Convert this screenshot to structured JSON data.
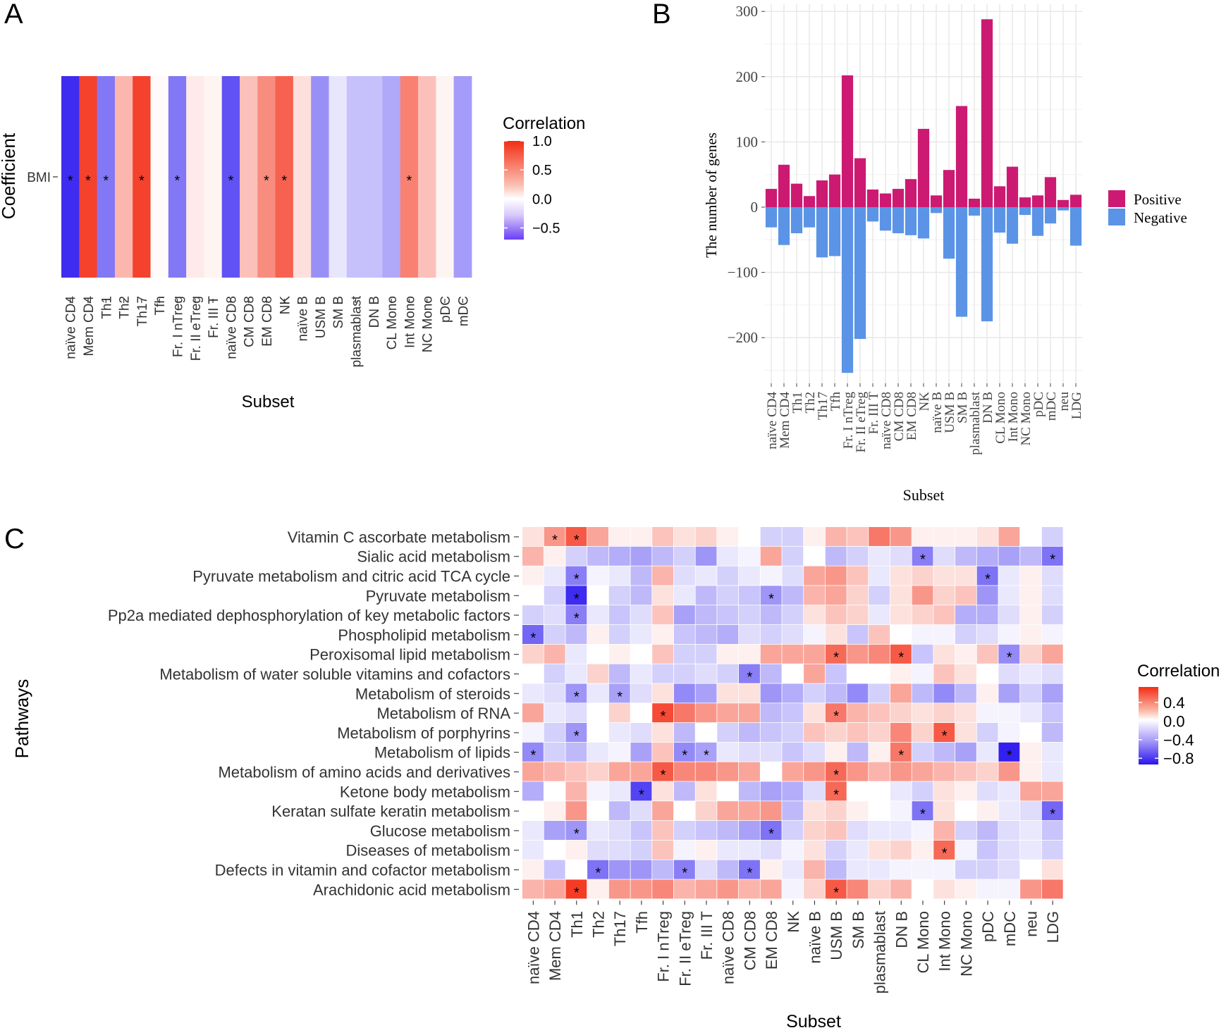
{
  "colors": {
    "positive": "#cc1a73",
    "negative": "#5b94e6",
    "high": "#f32d14",
    "mid": "#ffffff",
    "low": "#3320ef",
    "grid": "#e9e9e9"
  },
  "chart_data": [
    {
      "panel": "A",
      "type": "heatmap",
      "title": "",
      "xlabel": "Subset",
      "ylabel": "Coefficient",
      "rows": [
        "BMI"
      ],
      "categories": [
        "naïve CD4",
        "Mem CD4",
        "Th1",
        "Th2",
        "Th17",
        "Tfh",
        "Fr. I nTreg",
        "Fr. II eTreg",
        "Fr. III T",
        "naïve CD8",
        "CM CD8",
        "EM CD8",
        "NK",
        "naïve B",
        "USM B",
        "SM B",
        "plasmablast",
        "DN B",
        "CL Mono",
        "Int Mono",
        "NC Mono",
        "pDC",
        "mDC"
      ],
      "values": [
        [
          -0.85,
          0.9,
          -0.55,
          0.35,
          0.9,
          0.02,
          -0.55,
          0.1,
          0.05,
          -0.7,
          0.3,
          0.55,
          0.75,
          0.15,
          -0.45,
          -0.1,
          -0.25,
          -0.25,
          -0.35,
          0.6,
          0.3,
          0.05,
          -0.4
        ]
      ],
      "significant": [
        [
          1,
          1,
          1,
          0,
          1,
          0,
          1,
          0,
          0,
          1,
          0,
          1,
          1,
          0,
          0,
          0,
          0,
          0,
          0,
          1,
          0,
          0,
          0
        ]
      ],
      "legend_title": "Correlation",
      "legend_ticks": [
        "1.0",
        "0.5",
        "0.0",
        "−0.5"
      ],
      "ylim": [
        -0.7,
        1.0
      ]
    },
    {
      "panel": "B",
      "type": "bar",
      "title": "",
      "xlabel": "Subset",
      "ylabel": "The number of genes",
      "categories": [
        "naïve CD4",
        "Mem CD4",
        "Th1",
        "Th2",
        "Th17",
        "Tfh",
        "Fr. I nTreg",
        "Fr. II eTreg",
        "Fr. III T",
        "naïve CD8",
        "CM CD8",
        "EM CD8",
        "NK",
        "naïve B",
        "USM B",
        "SM B",
        "plasmablast",
        "DN B",
        "CL Mono",
        "Int Mono",
        "NC Mono",
        "pDC",
        "mDC",
        "neu",
        "LDG"
      ],
      "series": [
        {
          "name": "Positive",
          "values": [
            28,
            65,
            36,
            17,
            41,
            50,
            202,
            75,
            27,
            21,
            28,
            43,
            120,
            18,
            57,
            155,
            13,
            288,
            32,
            62,
            15,
            18,
            46,
            11,
            19
          ]
        },
        {
          "name": "Negative",
          "values": [
            -31,
            -58,
            -40,
            -31,
            -77,
            -75,
            -254,
            -202,
            -22,
            -36,
            -40,
            -43,
            -48,
            -9,
            -79,
            -168,
            -13,
            -175,
            -39,
            -56,
            -12,
            -44,
            -25,
            -5,
            -59
          ]
        }
      ],
      "yticks": [
        "300",
        "200",
        "100",
        "0",
        "−100",
        "−200"
      ],
      "ylim": [
        -255,
        310
      ]
    },
    {
      "panel": "C",
      "type": "heatmap",
      "title": "",
      "xlabel": "Subset",
      "ylabel": "Pathways",
      "rows": [
        "Vitamin C ascorbate metabolism",
        "Sialic acid metabolism",
        "Pyruvate metabolism and citric acid TCA cycle",
        "Pyruvate metabolism",
        "Pp2a mediated dephosphorylation of key metabolic factors",
        "Phospholipid metabolism",
        "Peroxisomal lipid metabolism",
        "Metabolism of water soluble vitamins and cofactors",
        "Metabolism of steroids",
        "Metabolism of RNA",
        "Metabolism of porphyrins",
        "Metabolism of lipids",
        "Metabolism of amino acids and derivatives",
        "Ketone body metabolism",
        "Keratan sulfate keratin metabolism",
        "Glucose metabolism",
        "Diseases of metabolism",
        "Defects in vitamin and cofactor metabolism",
        "Arachidonic acid metabolism"
      ],
      "categories": [
        "naïve CD4",
        "Mem CD4",
        "Th1",
        "Th2",
        "Th17",
        "Tfh",
        "Fr. I nTreg",
        "Fr. II eTreg",
        "Fr. III T",
        "naïve CD8",
        "CM CD8",
        "EM CD8",
        "NK",
        "naïve B",
        "USM B",
        "SM B",
        "plasmablast",
        "DN B",
        "CL Mono",
        "Int Mono",
        "NC Mono",
        "pDC",
        "mDC",
        "neu",
        "LDG"
      ],
      "values": [
        [
          0.1,
          0.35,
          0.55,
          0.3,
          0.05,
          0.05,
          0.2,
          0.1,
          0.15,
          0.05,
          0.0,
          -0.2,
          -0.2,
          0.05,
          0.25,
          0.2,
          0.45,
          0.35,
          0.05,
          0.05,
          0.05,
          0.1,
          0.3,
          0.0,
          -0.2
        ],
        [
          0.25,
          0.05,
          -0.2,
          -0.3,
          -0.35,
          -0.4,
          -0.3,
          -0.2,
          -0.45,
          -0.1,
          -0.05,
          0.3,
          -0.2,
          0.0,
          -0.3,
          -0.2,
          -0.1,
          -0.15,
          -0.55,
          -0.15,
          -0.3,
          -0.35,
          -0.4,
          -0.3,
          -0.6
        ],
        [
          0.05,
          -0.1,
          -0.55,
          -0.05,
          -0.1,
          -0.3,
          0.25,
          -0.15,
          -0.1,
          -0.2,
          -0.1,
          -0.05,
          -0.15,
          0.3,
          0.35,
          0.2,
          -0.1,
          0.1,
          0.15,
          0.1,
          0.1,
          -0.6,
          -0.1,
          0.05,
          -0.15
        ],
        [
          0.0,
          -0.2,
          -0.9,
          0.0,
          -0.2,
          -0.3,
          0.1,
          -0.1,
          -0.3,
          -0.2,
          -0.25,
          -0.45,
          -0.3,
          0.25,
          0.3,
          0.15,
          -0.2,
          0.1,
          0.35,
          0.15,
          0.2,
          -0.45,
          -0.1,
          0.05,
          -0.15
        ],
        [
          -0.2,
          -0.15,
          -0.55,
          -0.1,
          -0.25,
          -0.15,
          0.2,
          -0.4,
          -0.3,
          -0.25,
          -0.2,
          -0.3,
          -0.2,
          0.1,
          0.2,
          0.15,
          -0.1,
          0.1,
          0.15,
          0.2,
          -0.35,
          -0.35,
          -0.15,
          0.05,
          -0.2
        ],
        [
          -0.65,
          -0.2,
          -0.3,
          0.05,
          -0.2,
          -0.1,
          0.05,
          -0.25,
          -0.3,
          -0.35,
          -0.15,
          -0.2,
          -0.15,
          -0.05,
          0.1,
          -0.25,
          0.2,
          0.0,
          -0.05,
          -0.05,
          -0.2,
          -0.15,
          -0.05,
          0.05,
          -0.05
        ],
        [
          0.15,
          0.25,
          -0.1,
          0.0,
          0.05,
          0.0,
          0.2,
          -0.2,
          -0.2,
          0.05,
          0.05,
          0.3,
          0.3,
          0.3,
          0.5,
          0.35,
          0.4,
          0.55,
          -0.25,
          0.1,
          0.05,
          0.2,
          -0.5,
          0.15,
          0.3
        ],
        [
          0.0,
          -0.2,
          -0.1,
          0.15,
          -0.3,
          -0.1,
          -0.2,
          -0.2,
          -0.15,
          -0.2,
          -0.55,
          -0.3,
          0.0,
          0.3,
          -0.25,
          0.0,
          0.0,
          0.05,
          -0.05,
          0.2,
          0.1,
          0.0,
          -0.15,
          -0.1,
          -0.15
        ],
        [
          -0.1,
          -0.15,
          -0.45,
          -0.1,
          -0.4,
          -0.15,
          0.1,
          -0.5,
          -0.4,
          0.1,
          0.1,
          -0.45,
          -0.35,
          -0.2,
          -0.3,
          -0.5,
          -0.2,
          0.3,
          -0.3,
          -0.5,
          -0.3,
          0.05,
          -0.4,
          -0.2,
          -0.4
        ],
        [
          0.3,
          -0.1,
          -0.15,
          0.0,
          0.15,
          0.0,
          0.6,
          0.45,
          0.35,
          0.3,
          0.3,
          -0.3,
          -0.25,
          0.1,
          0.45,
          0.25,
          0.2,
          0.15,
          0.1,
          0.15,
          0.1,
          -0.05,
          -0.05,
          -0.1,
          -0.25
        ],
        [
          -0.05,
          -0.2,
          -0.45,
          0.0,
          -0.1,
          -0.15,
          0.1,
          -0.3,
          0.0,
          -0.2,
          -0.3,
          -0.25,
          -0.2,
          0.2,
          0.15,
          0.2,
          0.15,
          0.4,
          0.15,
          0.55,
          0.1,
          -0.2,
          -0.05,
          0.0,
          -0.3
        ],
        [
          -0.5,
          -0.2,
          -0.3,
          -0.1,
          -0.05,
          -0.4,
          0.2,
          -0.5,
          -0.4,
          -0.1,
          -0.15,
          -0.15,
          -0.25,
          -0.15,
          0.05,
          -0.3,
          0.05,
          0.45,
          -0.2,
          -0.3,
          -0.4,
          -0.1,
          -0.95,
          0.05,
          -0.1
        ],
        [
          0.3,
          0.25,
          0.2,
          0.15,
          0.3,
          0.3,
          0.55,
          0.4,
          0.4,
          0.35,
          0.3,
          0.0,
          0.3,
          0.35,
          0.5,
          0.35,
          0.25,
          0.35,
          0.3,
          0.25,
          0.2,
          0.15,
          0.35,
          0.05,
          -0.1
        ],
        [
          -0.35,
          0.0,
          0.25,
          -0.05,
          -0.1,
          -0.8,
          0.1,
          -0.3,
          0.1,
          0.0,
          -0.3,
          -0.4,
          -0.35,
          -0.15,
          0.5,
          0.0,
          0.0,
          -0.1,
          -0.2,
          0.1,
          0.05,
          -0.15,
          -0.1,
          0.3,
          0.3
        ],
        [
          0.0,
          0.05,
          0.35,
          0.0,
          -0.3,
          -0.15,
          0.3,
          0.0,
          0.15,
          0.3,
          0.3,
          0.35,
          -0.3,
          0.1,
          0.15,
          0.05,
          0.0,
          -0.05,
          -0.6,
          0.1,
          0.0,
          0.05,
          -0.1,
          -0.15,
          -0.65
        ],
        [
          -0.1,
          -0.4,
          -0.45,
          -0.1,
          -0.15,
          -0.25,
          0.2,
          -0.2,
          -0.25,
          -0.3,
          -0.4,
          -0.6,
          -0.2,
          0.15,
          0.2,
          -0.15,
          -0.1,
          -0.1,
          -0.05,
          0.25,
          -0.2,
          -0.3,
          -0.15,
          -0.1,
          -0.25
        ],
        [
          -0.1,
          0.0,
          0.05,
          -0.15,
          -0.15,
          -0.2,
          0.2,
          -0.05,
          0.05,
          -0.1,
          -0.1,
          -0.15,
          -0.05,
          0.1,
          -0.2,
          -0.1,
          0.1,
          0.15,
          0.05,
          0.5,
          -0.05,
          -0.25,
          -0.15,
          -0.1,
          -0.2
        ],
        [
          0.05,
          -0.25,
          0.0,
          -0.6,
          -0.45,
          -0.45,
          -0.3,
          -0.55,
          -0.15,
          -0.3,
          -0.6,
          0.05,
          -0.1,
          0.25,
          -0.3,
          -0.1,
          -0.1,
          -0.05,
          -0.05,
          -0.05,
          -0.2,
          -0.2,
          -0.15,
          0.0,
          0.1
        ],
        [
          0.25,
          0.3,
          0.65,
          0.05,
          0.35,
          0.35,
          0.4,
          0.25,
          0.3,
          0.35,
          0.25,
          0.3,
          -0.05,
          0.15,
          0.55,
          0.4,
          0.15,
          0.25,
          0.0,
          0.1,
          0.05,
          -0.05,
          -0.05,
          0.35,
          0.45
        ]
      ],
      "significant": [
        [
          0,
          1,
          1,
          0,
          0,
          0,
          0,
          0,
          0,
          0,
          0,
          0,
          0,
          0,
          0,
          0,
          0,
          0,
          0,
          0,
          0,
          0,
          0,
          0,
          0
        ],
        [
          0,
          0,
          0,
          0,
          0,
          0,
          0,
          0,
          0,
          0,
          0,
          0,
          0,
          0,
          0,
          0,
          0,
          0,
          1,
          0,
          0,
          0,
          0,
          0,
          1
        ],
        [
          0,
          0,
          1,
          0,
          0,
          0,
          0,
          0,
          0,
          0,
          0,
          0,
          0,
          0,
          0,
          0,
          0,
          0,
          0,
          0,
          0,
          1,
          0,
          0,
          0
        ],
        [
          0,
          0,
          1,
          0,
          0,
          0,
          0,
          0,
          0,
          0,
          0,
          1,
          0,
          0,
          0,
          0,
          0,
          0,
          0,
          0,
          0,
          0,
          0,
          0,
          0
        ],
        [
          0,
          0,
          1,
          0,
          0,
          0,
          0,
          0,
          0,
          0,
          0,
          0,
          0,
          0,
          0,
          0,
          0,
          0,
          0,
          0,
          0,
          0,
          0,
          0,
          0
        ],
        [
          1,
          0,
          0,
          0,
          0,
          0,
          0,
          0,
          0,
          0,
          0,
          0,
          0,
          0,
          0,
          0,
          0,
          0,
          0,
          0,
          0,
          0,
          0,
          0,
          0
        ],
        [
          0,
          0,
          0,
          0,
          0,
          0,
          0,
          0,
          0,
          0,
          0,
          0,
          0,
          0,
          1,
          0,
          0,
          1,
          0,
          0,
          0,
          0,
          1,
          0,
          0
        ],
        [
          0,
          0,
          0,
          0,
          0,
          0,
          0,
          0,
          0,
          0,
          1,
          0,
          0,
          0,
          0,
          0,
          0,
          0,
          0,
          0,
          0,
          0,
          0,
          0,
          0
        ],
        [
          0,
          0,
          1,
          0,
          1,
          0,
          0,
          0,
          0,
          0,
          0,
          0,
          0,
          0,
          0,
          0,
          0,
          0,
          0,
          0,
          0,
          0,
          0,
          0,
          0
        ],
        [
          0,
          0,
          0,
          0,
          0,
          0,
          1,
          0,
          0,
          0,
          0,
          0,
          0,
          0,
          1,
          0,
          0,
          0,
          0,
          0,
          0,
          0,
          0,
          0,
          0
        ],
        [
          0,
          0,
          1,
          0,
          0,
          0,
          0,
          0,
          0,
          0,
          0,
          0,
          0,
          0,
          0,
          0,
          0,
          0,
          0,
          1,
          0,
          0,
          0,
          0,
          0
        ],
        [
          1,
          0,
          0,
          0,
          0,
          0,
          0,
          1,
          1,
          0,
          0,
          0,
          0,
          0,
          0,
          0,
          0,
          1,
          0,
          0,
          0,
          0,
          1,
          0,
          0
        ],
        [
          0,
          0,
          0,
          0,
          0,
          0,
          1,
          0,
          0,
          0,
          0,
          0,
          0,
          0,
          1,
          0,
          0,
          0,
          0,
          0,
          0,
          0,
          0,
          0,
          0
        ],
        [
          0,
          0,
          0,
          0,
          0,
          1,
          0,
          0,
          0,
          0,
          0,
          0,
          0,
          0,
          1,
          0,
          0,
          0,
          0,
          0,
          0,
          0,
          0,
          0,
          0
        ],
        [
          0,
          0,
          0,
          0,
          0,
          0,
          0,
          0,
          0,
          0,
          0,
          0,
          0,
          0,
          0,
          0,
          0,
          0,
          1,
          0,
          0,
          0,
          0,
          0,
          1
        ],
        [
          0,
          0,
          1,
          0,
          0,
          0,
          0,
          0,
          0,
          0,
          0,
          1,
          0,
          0,
          0,
          0,
          0,
          0,
          0,
          0,
          0,
          0,
          0,
          0,
          0
        ],
        [
          0,
          0,
          0,
          0,
          0,
          0,
          0,
          0,
          0,
          0,
          0,
          0,
          0,
          0,
          0,
          0,
          0,
          0,
          0,
          1,
          0,
          0,
          0,
          0,
          0
        ],
        [
          0,
          0,
          0,
          1,
          0,
          0,
          0,
          1,
          0,
          0,
          1,
          0,
          0,
          0,
          0,
          0,
          0,
          0,
          0,
          0,
          0,
          0,
          0,
          0,
          0
        ],
        [
          0,
          0,
          1,
          0,
          0,
          0,
          0,
          0,
          0,
          0,
          0,
          0,
          0,
          0,
          1,
          0,
          0,
          0,
          0,
          0,
          0,
          0,
          0,
          0,
          0
        ]
      ],
      "legend_title": "Correlation",
      "legend_ticks": [
        "0.4",
        "0.0",
        "−0.4",
        "−0.8"
      ],
      "ylim": [
        -0.95,
        0.7
      ]
    }
  ],
  "labels": {
    "panel_a": "A",
    "panel_b": "B",
    "panel_c": "C",
    "star": "*"
  }
}
